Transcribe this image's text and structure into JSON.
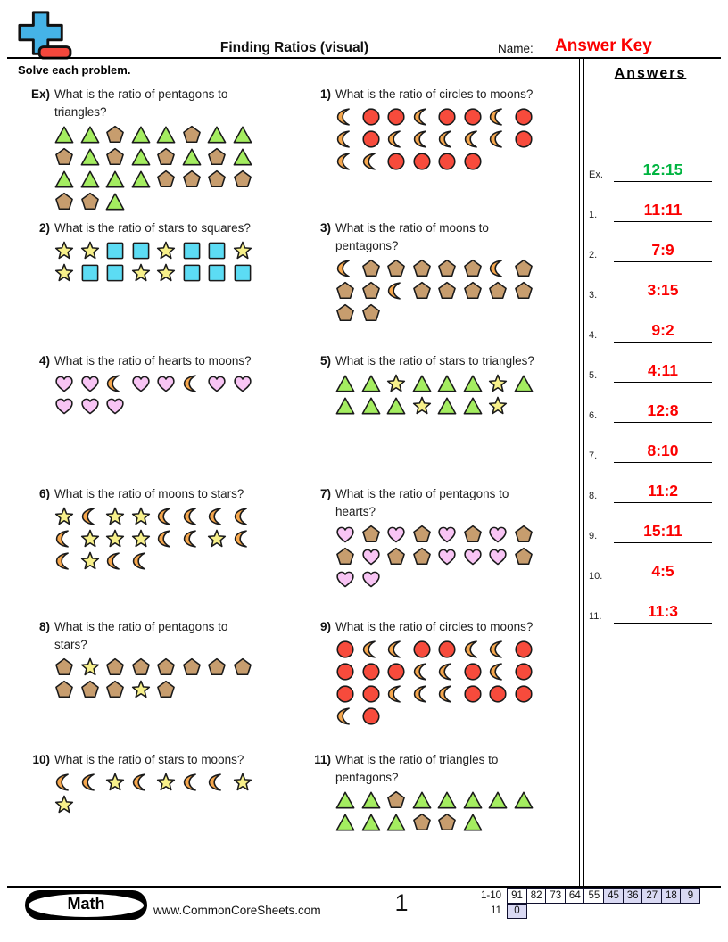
{
  "header": {
    "title": "Finding Ratios (visual)",
    "name_label": "Name:",
    "name_value": "Answer Key",
    "instruction": "Solve each problem.",
    "answers_title": "Answers"
  },
  "colors": {
    "answer_red": "#fb0000",
    "answer_green": "#00b440",
    "triangle": "#a4ed60",
    "pentagon": "#c79d6e",
    "circle": "#f74b3c",
    "square": "#5cdcf4",
    "star": "#f7f08a",
    "moon": "#f6a74d",
    "heart": "#f8c4f4",
    "score_highlight": "#d9d9f3",
    "logo_blue": "#45b3e7",
    "logo_red": "#f4473c"
  },
  "problems": [
    {
      "number": "Ex)",
      "col": 0,
      "row": 0,
      "lines": [
        "What is the ratio of pentagons to",
        "triangles?"
      ],
      "rows": [
        [
          "triangle",
          "triangle",
          "pentagon",
          "triangle",
          "triangle",
          "pentagon",
          "triangle",
          "triangle"
        ],
        [
          "pentagon",
          "triangle",
          "pentagon",
          "triangle",
          "pentagon",
          "triangle",
          "pentagon",
          "triangle"
        ],
        [
          "triangle",
          "triangle",
          "triangle",
          "triangle",
          "pentagon",
          "pentagon",
          "pentagon",
          "pentagon"
        ],
        [
          "pentagon",
          "pentagon",
          "triangle"
        ]
      ]
    },
    {
      "number": "1)",
      "col": 1,
      "row": 0,
      "lines": [
        "What is the ratio of circles to moons?"
      ],
      "rows": [
        [
          "moon",
          "circle",
          "circle",
          "moon",
          "circle",
          "circle",
          "moon",
          "circle"
        ],
        [
          "moon",
          "circle",
          "moon",
          "moon",
          "moon",
          "moon",
          "moon",
          "circle"
        ],
        [
          "moon",
          "moon",
          "circle",
          "circle",
          "circle",
          "circle"
        ]
      ]
    },
    {
      "number": "2)",
      "col": 0,
      "row": 1,
      "lines": [
        "What is the ratio of stars to squares?"
      ],
      "rows": [
        [
          "star",
          "star",
          "square",
          "square",
          "star",
          "square",
          "square",
          "star"
        ],
        [
          "star",
          "square",
          "square",
          "star",
          "star",
          "square",
          "square",
          "square"
        ]
      ]
    },
    {
      "number": "3)",
      "col": 1,
      "row": 1,
      "lines": [
        "What is the ratio of moons to",
        "pentagons?"
      ],
      "rows": [
        [
          "moon",
          "pentagon",
          "pentagon",
          "pentagon",
          "pentagon",
          "pentagon",
          "moon",
          "pentagon"
        ],
        [
          "pentagon",
          "pentagon",
          "moon",
          "pentagon",
          "pentagon",
          "pentagon",
          "pentagon",
          "pentagon"
        ],
        [
          "pentagon",
          "pentagon"
        ]
      ]
    },
    {
      "number": "4)",
      "col": 0,
      "row": 2,
      "lines": [
        "What is the ratio of hearts to moons?"
      ],
      "rows": [
        [
          "heart",
          "heart",
          "moon",
          "heart",
          "heart",
          "moon",
          "heart",
          "heart"
        ],
        [
          "heart",
          "heart",
          "heart"
        ]
      ]
    },
    {
      "number": "5)",
      "col": 1,
      "row": 2,
      "lines": [
        "What is the ratio of stars to triangles?"
      ],
      "rows": [
        [
          "triangle",
          "triangle",
          "star",
          "triangle",
          "triangle",
          "triangle",
          "star",
          "triangle"
        ],
        [
          "triangle",
          "triangle",
          "triangle",
          "star",
          "triangle",
          "triangle",
          "star"
        ]
      ]
    },
    {
      "number": "6)",
      "col": 0,
      "row": 3,
      "lines": [
        "What is the ratio of moons to stars?"
      ],
      "rows": [
        [
          "star",
          "moon",
          "star",
          "star",
          "moon",
          "moon",
          "moon",
          "moon"
        ],
        [
          "moon",
          "star",
          "star",
          "star",
          "moon",
          "moon",
          "star",
          "moon"
        ],
        [
          "moon",
          "star",
          "moon",
          "moon"
        ]
      ]
    },
    {
      "number": "7)",
      "col": 1,
      "row": 3,
      "lines": [
        "What is the ratio of pentagons to",
        "hearts?"
      ],
      "rows": [
        [
          "heart",
          "pentagon",
          "heart",
          "pentagon",
          "heart",
          "pentagon",
          "heart",
          "pentagon"
        ],
        [
          "pentagon",
          "heart",
          "pentagon",
          "pentagon",
          "heart",
          "heart",
          "heart",
          "pentagon"
        ],
        [
          "heart",
          "heart"
        ]
      ]
    },
    {
      "number": "8)",
      "col": 0,
      "row": 4,
      "lines": [
        "What is the ratio of pentagons to",
        "stars?"
      ],
      "rows": [
        [
          "pentagon",
          "star",
          "pentagon",
          "pentagon",
          "pentagon",
          "pentagon",
          "pentagon",
          "pentagon"
        ],
        [
          "pentagon",
          "pentagon",
          "pentagon",
          "star",
          "pentagon"
        ]
      ]
    },
    {
      "number": "9)",
      "col": 1,
      "row": 4,
      "lines": [
        "What is the ratio of circles to moons?"
      ],
      "rows": [
        [
          "circle",
          "moon",
          "moon",
          "circle",
          "circle",
          "moon",
          "moon",
          "circle"
        ],
        [
          "circle",
          "circle",
          "circle",
          "moon",
          "moon",
          "circle",
          "moon",
          "circle"
        ],
        [
          "circle",
          "circle",
          "moon",
          "moon",
          "moon",
          "circle",
          "circle",
          "circle"
        ],
        [
          "moon",
          "circle"
        ]
      ]
    },
    {
      "number": "10)",
      "col": 0,
      "row": 5,
      "lines": [
        "What is the ratio of stars to moons?"
      ],
      "rows": [
        [
          "moon",
          "moon",
          "star",
          "moon",
          "star",
          "moon",
          "moon",
          "star"
        ],
        [
          "star"
        ]
      ]
    },
    {
      "number": "11)",
      "col": 1,
      "row": 5,
      "lines": [
        "What is the ratio of triangles to",
        "pentagons?"
      ],
      "rows": [
        [
          "triangle",
          "triangle",
          "pentagon",
          "triangle",
          "triangle",
          "triangle",
          "triangle",
          "triangle"
        ],
        [
          "triangle",
          "triangle",
          "triangle",
          "pentagon",
          "pentagon",
          "triangle"
        ]
      ]
    }
  ],
  "answers": [
    {
      "label": "Ex.",
      "value": "12:15",
      "green": true
    },
    {
      "label": "1.",
      "value": "11:11"
    },
    {
      "label": "2.",
      "value": "7:9"
    },
    {
      "label": "3.",
      "value": "3:15"
    },
    {
      "label": "4.",
      "value": "9:2"
    },
    {
      "label": "5.",
      "value": "4:11"
    },
    {
      "label": "6.",
      "value": "12:8"
    },
    {
      "label": "7.",
      "value": "8:10"
    },
    {
      "label": "8.",
      "value": "11:2"
    },
    {
      "label": "9.",
      "value": "15:11"
    },
    {
      "label": "10.",
      "value": "4:5"
    },
    {
      "label": "11.",
      "value": "11:3"
    }
  ],
  "footer": {
    "subject": "Math",
    "website": "www.CommonCoreSheets.com",
    "page": "1",
    "score_table": [
      {
        "label": "1-10",
        "cells": [
          "91",
          "82",
          "73",
          "64",
          "55",
          "45",
          "36",
          "27",
          "18",
          "9"
        ],
        "highlight_from": 5
      },
      {
        "label": "11",
        "cells": [
          "0"
        ],
        "highlight_from": 0
      }
    ]
  }
}
